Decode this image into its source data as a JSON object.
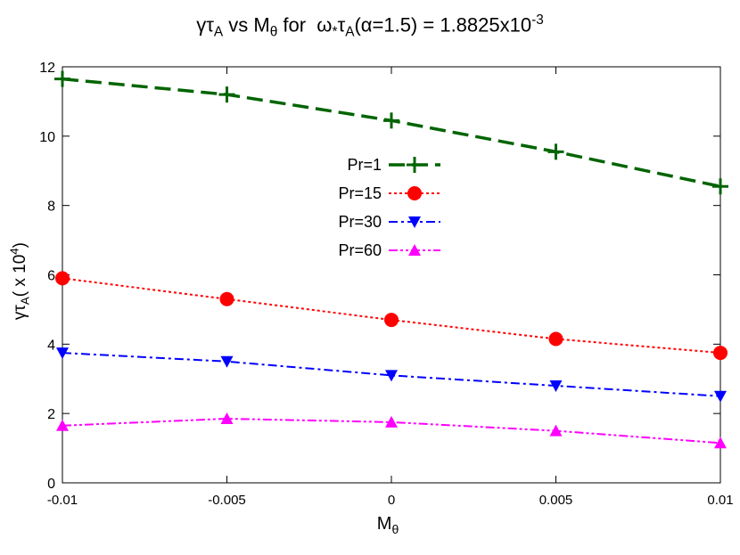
{
  "chart_data": {
    "type": "line",
    "title": "γτA vs Mθ for ω*τA(α=1.5) = 1.8825x10-3",
    "xlabel": "Mθ",
    "ylabel": "γτA( x 104)",
    "x": [
      -0.01,
      -0.005,
      0,
      0.005,
      0.01
    ],
    "xlim": [
      -0.01,
      0.01
    ],
    "ylim": [
      0,
      12
    ],
    "x_ticks": [
      "-0.01",
      "-0.005",
      "0",
      "0.005",
      "0.01"
    ],
    "y_ticks": [
      "0",
      "2",
      "4",
      "6",
      "8",
      "10",
      "12"
    ],
    "grid": false,
    "legend_position": "center",
    "series": [
      {
        "name": "Pr=1",
        "values": [
          11.65,
          11.2,
          10.45,
          9.55,
          8.55
        ],
        "color": "#006400",
        "marker": "plus",
        "dash": "18,8"
      },
      {
        "name": "Pr=15",
        "values": [
          5.9,
          5.3,
          4.7,
          4.15,
          3.75
        ],
        "color": "#ff0000",
        "marker": "circle",
        "dash": "3,3"
      },
      {
        "name": "Pr=30",
        "values": [
          3.75,
          3.5,
          3.1,
          2.8,
          2.5
        ],
        "color": "#0000ff",
        "marker": "triangle-down",
        "dash": "10,4,3,4"
      },
      {
        "name": "Pr=60",
        "values": [
          1.65,
          1.85,
          1.75,
          1.5,
          1.15
        ],
        "color": "#ff00ff",
        "marker": "triangle-up",
        "dash": "10,3,3,3,3,3"
      }
    ]
  }
}
